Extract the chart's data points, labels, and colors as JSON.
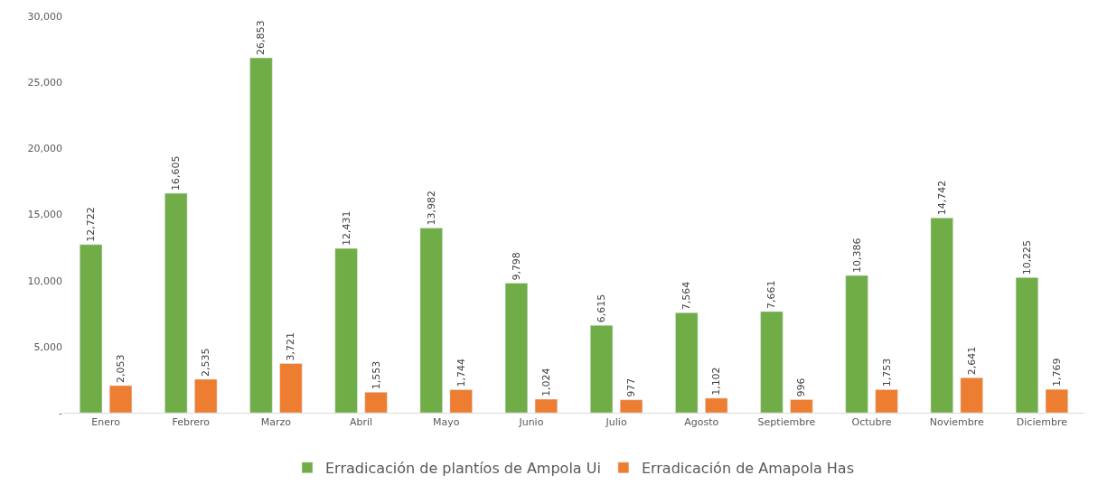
{
  "chart_data": {
    "type": "bar",
    "categories": [
      "Enero",
      "Febrero",
      "Marzo",
      "Abril",
      "Mayo",
      "Junio",
      "Julio",
      "Agosto",
      "Septiembre",
      "Octubre",
      "Noviembre",
      "Diciembre"
    ],
    "series": [
      {
        "name": "Erradicación de plantíos de Ampola Ui",
        "color": "#70ad47",
        "values": [
          12722,
          16605,
          26853,
          12431,
          13982,
          9798,
          6615,
          7564,
          7661,
          10386,
          14742,
          10225
        ],
        "value_labels": [
          "12,722",
          "16,605",
          "26,853",
          "12,431",
          "13,982",
          "9,798",
          "6,615",
          "7,564",
          "7,661",
          "10,386",
          "14,742",
          "10,225"
        ]
      },
      {
        "name": "Erradicación de Amapola Has",
        "color": "#ed7d31",
        "values": [
          2053,
          2535,
          3721,
          1553,
          1744,
          1024,
          977,
          1102,
          996,
          1753,
          2641,
          1769
        ],
        "value_labels": [
          "2,053",
          "2,535",
          "3,721",
          "1,553",
          "1,744",
          "1,024",
          "977",
          "1,102",
          "996",
          "1,753",
          "2,641",
          "1,769"
        ]
      }
    ],
    "ylim": [
      0,
      30000
    ],
    "yticks": [
      {
        "value": 0,
        "label": "-"
      },
      {
        "value": 5000,
        "label": "5,000"
      },
      {
        "value": 10000,
        "label": "10,000"
      },
      {
        "value": 15000,
        "label": "15,000"
      },
      {
        "value": 20000,
        "label": "20,000"
      },
      {
        "value": 25000,
        "label": "25,000"
      },
      {
        "value": 30000,
        "label": "30,000"
      }
    ],
    "legend": "bottom"
  }
}
